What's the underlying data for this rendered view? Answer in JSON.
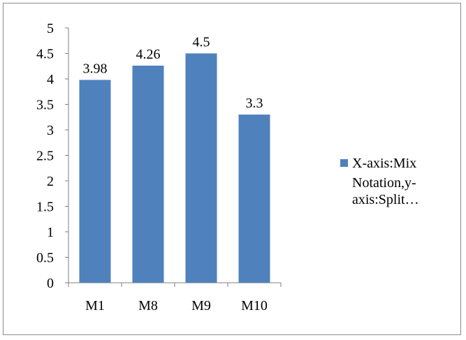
{
  "chart_data": {
    "type": "bar",
    "categories": [
      "M1",
      "M8",
      "M9",
      "M10"
    ],
    "series": [
      {
        "name": "X-axis:Mix Notation,y-axis:Split…",
        "values": [
          3.98,
          4.26,
          4.5,
          3.3
        ],
        "color": "#4F81BD"
      }
    ],
    "data_labels": [
      "3.98",
      "4.26",
      "4.5",
      "3.3"
    ],
    "y_ticks": [
      "0",
      "0.5",
      "1",
      "1.5",
      "2",
      "2.5",
      "3",
      "3.5",
      "4",
      "4.5",
      "5"
    ],
    "ylim": [
      0,
      5
    ],
    "grid": false,
    "legend_position": "right",
    "legend_lines": [
      "X-axis:Mix",
      "Notation,y-",
      "axis:Split…"
    ]
  }
}
